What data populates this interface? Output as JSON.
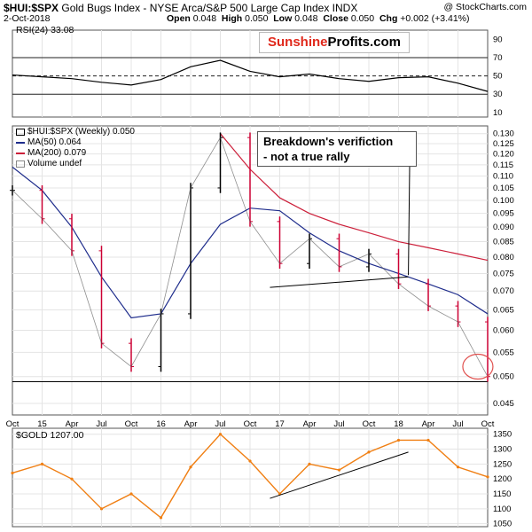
{
  "header": {
    "symbol": "$HUI:$SPX",
    "description": "Gold Bugs Index - NYSE Arca/S&P 500 Large Cap Index INDX",
    "date": "2-Oct-2018",
    "open_label": "Open",
    "open": "0.048",
    "high_label": "High",
    "high": "0.050",
    "low_label": "Low",
    "low": "0.048",
    "close_label": "Close",
    "close": "0.050",
    "chg_label": "Chg",
    "chg": "+0.002 (+3.41%)",
    "credit": "@ StockCharts.com"
  },
  "logo": {
    "part1": "Sunshine",
    "part2": "Profits.com"
  },
  "annotation": {
    "line1": "Breakdown's verifiction",
    "line2": "- not a true rally"
  },
  "colors": {
    "price_up": "#000000",
    "price_down": "#cc0033",
    "ma50": "#1f2d8c",
    "ma200": "#cc1f3a",
    "rsi": "#000000",
    "gold": "#f07f13",
    "grid": "#e4e4e4",
    "axis": "#555555",
    "ellipse": "#e0504e"
  },
  "rsi_legend": "RSI(24) 33.08",
  "gold_legend": "$GOLD 1207.00",
  "legend": [
    {
      "swatch": "none",
      "label": "$HUI:$SPX (Weekly) 0.050"
    },
    {
      "swatch": "#1f2d8c",
      "label": "MA(50) 0.064"
    },
    {
      "swatch": "#cc1f3a",
      "label": "MA(200) 0.079"
    },
    {
      "swatch": "none",
      "label": "Volume undef"
    }
  ],
  "chart_data": [
    {
      "type": "line",
      "title": "RSI(24) 33.08",
      "ylim": [
        5,
        100
      ],
      "y_ticks": [
        90,
        70,
        50,
        30,
        10
      ],
      "reference_lines": [
        70,
        50,
        30
      ],
      "x": [
        "Oct 2014",
        "Jan 2015",
        "Apr 2015",
        "Jul 2015",
        "Oct 2015",
        "Jan 2016",
        "Apr 2016",
        "Jul 2016",
        "Oct 2016",
        "Jan 2017",
        "Apr 2017",
        "Jul 2017",
        "Oct 2017",
        "Jan 2018",
        "Apr 2018",
        "Jul 2018",
        "Oct 2018"
      ],
      "series": [
        {
          "values": [
            51,
            49,
            47,
            43,
            40,
            46,
            60,
            67,
            55,
            49,
            52,
            47,
            44,
            48,
            49,
            42,
            33
          ]
        }
      ]
    },
    {
      "type": "line",
      "title": "$HUI:$SPX (Weekly) 0.050",
      "y_scale": "log",
      "ylim": [
        0.043,
        0.134
      ],
      "y_ticks": [
        0.13,
        0.125,
        0.12,
        0.115,
        0.11,
        0.105,
        0.1,
        0.095,
        0.09,
        0.085,
        0.08,
        0.075,
        0.07,
        0.065,
        0.06,
        0.055,
        0.05,
        0.045
      ],
      "x_ticks": [
        "Oct",
        "15",
        "Apr",
        "Jul",
        "Oct",
        "16",
        "Apr",
        "Jul",
        "Oct",
        "17",
        "Apr",
        "Jul",
        "Oct",
        "18",
        "Apr",
        "Jul",
        "Oct"
      ],
      "x": [
        "Oct 2014",
        "Jan 2015",
        "Apr 2015",
        "Jul 2015",
        "Oct 2015",
        "Jan 2016",
        "Apr 2016",
        "Jul 2016",
        "Oct 2016",
        "Jan 2017",
        "Apr 2017",
        "Jul 2017",
        "Oct 2017",
        "Jan 2018",
        "Apr 2018",
        "Jul 2018",
        "Oct 2018"
      ],
      "series": [
        {
          "name": "$HUI:$SPX (Weekly) 0.050",
          "values": [
            0.104,
            0.093,
            0.082,
            0.057,
            0.052,
            0.064,
            0.105,
            0.128,
            0.092,
            0.078,
            0.086,
            0.077,
            0.081,
            0.072,
            0.066,
            0.062,
            0.05
          ]
        },
        {
          "name": "MA(50) 0.064",
          "values": [
            0.114,
            0.104,
            0.09,
            0.074,
            0.063,
            0.064,
            0.078,
            0.091,
            0.097,
            0.096,
            0.088,
            0.082,
            0.078,
            0.075,
            0.072,
            0.069,
            0.064
          ]
        },
        {
          "name": "MA(200) 0.079",
          "values": [
            null,
            null,
            null,
            null,
            null,
            null,
            null,
            0.13,
            0.113,
            0.101,
            0.095,
            0.091,
            0.088,
            0.085,
            0.083,
            0.081,
            0.079
          ]
        }
      ],
      "reference_lines": [
        0.049
      ],
      "trendline": {
        "from": [
          "Dec 2016",
          0.071
        ],
        "to": [
          "Feb 2018",
          0.074
        ]
      },
      "highlight_ellipse": {
        "x": "Sep 2018",
        "y": 0.052
      }
    },
    {
      "type": "line",
      "title": "$GOLD 1207.00",
      "ylim": [
        1040,
        1370
      ],
      "y_ticks": [
        1350,
        1300,
        1250,
        1200,
        1150,
        1100,
        1050
      ],
      "x": [
        "Oct 2014",
        "Jan 2015",
        "Apr 2015",
        "Jul 2015",
        "Oct 2015",
        "Jan 2016",
        "Apr 2016",
        "Jul 2016",
        "Oct 2016",
        "Jan 2017",
        "Apr 2017",
        "Jul 2017",
        "Oct 2017",
        "Jan 2018",
        "Apr 2018",
        "Jul 2018",
        "Oct 2018"
      ],
      "series": [
        {
          "name": "$GOLD 1207.00",
          "values": [
            1220,
            1250,
            1200,
            1100,
            1150,
            1070,
            1240,
            1350,
            1260,
            1150,
            1250,
            1230,
            1290,
            1330,
            1330,
            1240,
            1207
          ]
        }
      ],
      "trendline": {
        "from": [
          "Dec 2016",
          1135
        ],
        "to": [
          "Feb 2018",
          1290
        ]
      }
    }
  ]
}
